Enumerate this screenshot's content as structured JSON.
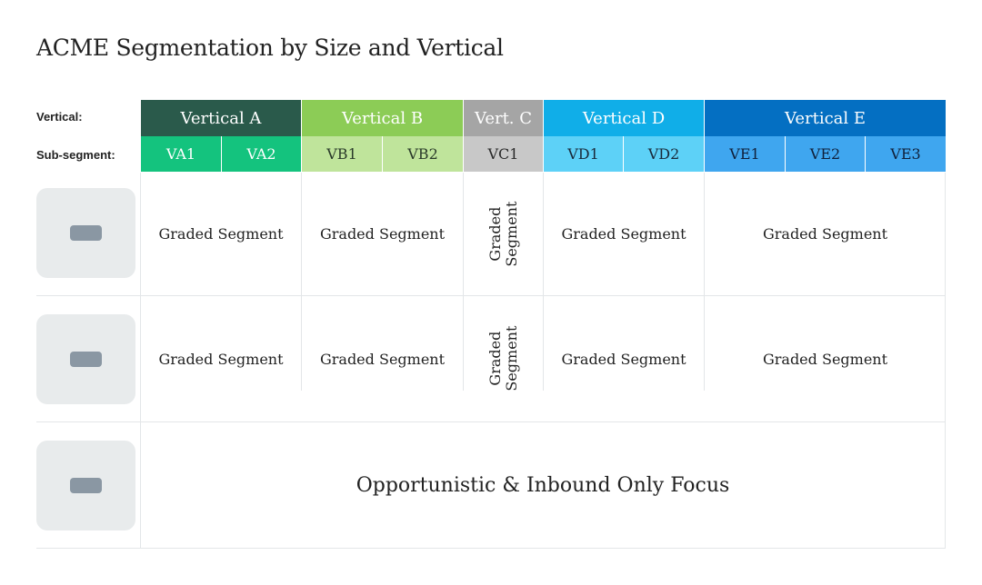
{
  "title": "ACME Segmentation by Size and Vertical",
  "labels": {
    "vertical": "Vertical:",
    "subsegment": "Sub-segment:"
  },
  "verticals": [
    {
      "label": "Vertical A",
      "color": "#2a5a4b",
      "sub_color": "#14c37e",
      "subs": [
        "VA1",
        "VA2"
      ]
    },
    {
      "label": "Vertical B",
      "color": "#8ccc56",
      "sub_color": "#bfe49b",
      "subs": [
        "VB1",
        "VB2"
      ]
    },
    {
      "label": "Vert. C",
      "color": "#a5a5a5",
      "sub_color": "#c8c8c8",
      "subs": [
        "VC1"
      ]
    },
    {
      "label": "Vertical D",
      "color": "#10aee8",
      "sub_color": "#5dd1f7",
      "subs": [
        "VD1",
        "VD2"
      ]
    },
    {
      "label": "Vertical E",
      "color": "#046fc2",
      "sub_color": "#3fa6ef",
      "subs": [
        "VE1",
        "VE2",
        "VE3"
      ]
    }
  ],
  "rows": [
    {
      "cells": [
        "Graded Segment",
        "Graded Segment",
        "Graded\nSegment",
        "Graded Segment",
        "Graded Segment"
      ]
    },
    {
      "cells": [
        "Graded Segment",
        "Graded Segment",
        "Graded\nSegment",
        "Graded Segment",
        "Graded Segment"
      ]
    }
  ],
  "bottom_row": "Opportunistic & Inbound Only Focus"
}
